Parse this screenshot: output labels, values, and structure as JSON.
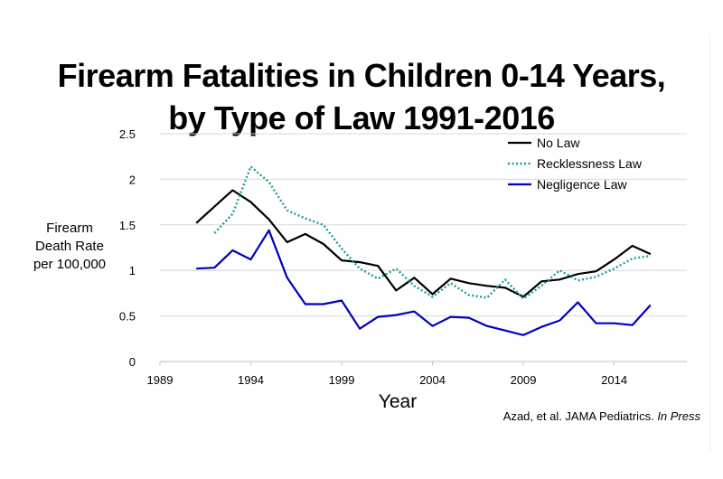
{
  "slide": {
    "title_line1": "Firearm Fatalities in Children 0-14 Years,",
    "title_line2": "by Type of Law 1991-2016",
    "source_prefix": "Azad, et al. JAMA Pediatrics.",
    "source_suffix": "In Press"
  },
  "chart_data": {
    "type": "line",
    "xlabel": "Year",
    "ylabel_lines": [
      "Firearm",
      "Death Rate",
      "per 100,000"
    ],
    "xlim": [
      1989,
      2018
    ],
    "ylim": [
      0,
      2.5
    ],
    "x_ticks": [
      1989,
      1994,
      1999,
      2004,
      2009,
      2014
    ],
    "y_ticks": [
      0,
      0.5,
      1,
      1.5,
      2,
      2.5
    ],
    "y_tick_labels": [
      "0",
      "0.5",
      "1",
      "1.5",
      "2",
      "2.5"
    ],
    "grid": "horizontal",
    "legend_position": "top-right",
    "series": [
      {
        "name": "No Law",
        "color": "#000000",
        "style": "solid",
        "x": [
          1991,
          1992,
          1993,
          1994,
          1995,
          1996,
          1997,
          1998,
          1999,
          2000,
          2001,
          2002,
          2003,
          2004,
          2005,
          2006,
          2007,
          2008,
          2009,
          2010,
          2011,
          2012,
          2013,
          2014,
          2015,
          2016
        ],
        "values": [
          1.52,
          1.7,
          1.88,
          1.75,
          1.56,
          1.31,
          1.4,
          1.29,
          1.11,
          1.09,
          1.05,
          0.78,
          0.92,
          0.74,
          0.91,
          0.86,
          0.83,
          0.81,
          0.71,
          0.88,
          0.9,
          0.96,
          0.99,
          1.12,
          1.27,
          1.18
        ]
      },
      {
        "name": "Recklessness Law",
        "color": "#1a9e96",
        "style": "dotted",
        "x": [
          1992,
          1993,
          1994,
          1995,
          1996,
          1997,
          1998,
          1999,
          2000,
          2001,
          2002,
          2003,
          2004,
          2005,
          2006,
          2007,
          2008,
          2009,
          2010,
          2011,
          2012,
          2013,
          2014,
          2015,
          2016
        ],
        "values": [
          1.41,
          1.62,
          2.14,
          1.97,
          1.66,
          1.57,
          1.5,
          1.24,
          1.02,
          0.91,
          1.02,
          0.83,
          0.71,
          0.86,
          0.73,
          0.7,
          0.9,
          0.69,
          0.83,
          1.0,
          0.89,
          0.93,
          1.02,
          1.13,
          1.16
        ]
      },
      {
        "name": "Negligence Law",
        "color": "#0000c0",
        "style": "solid",
        "x": [
          1991,
          1992,
          1993,
          1994,
          1995,
          1996,
          1997,
          1998,
          1999,
          2000,
          2001,
          2002,
          2003,
          2004,
          2005,
          2006,
          2007,
          2008,
          2009,
          2010,
          2011,
          2012,
          2013,
          2014,
          2015,
          2016
        ],
        "values": [
          1.02,
          1.03,
          1.22,
          1.12,
          1.44,
          0.92,
          0.63,
          0.63,
          0.67,
          0.36,
          0.49,
          0.51,
          0.55,
          0.39,
          0.49,
          0.48,
          0.39,
          0.34,
          0.29,
          0.38,
          0.45,
          0.65,
          0.42,
          0.42,
          0.4,
          0.62
        ]
      }
    ]
  }
}
